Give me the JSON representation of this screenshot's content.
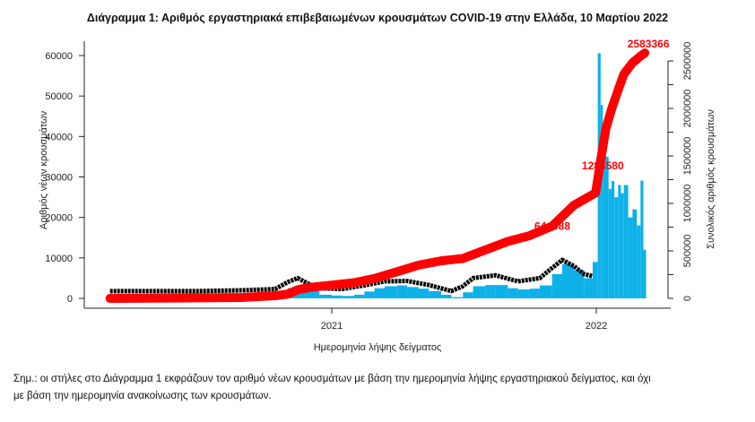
{
  "chart_data": {
    "type": "bar",
    "title": "Διάγραμμα 1: Αριθμός εργαστηριακά επιβεβαιωμένων κρουσμάτων COVID-19 στην Ελλάδα, 10 Μαρτίου 2022",
    "xlabel": "Ημερομηνία λήψης δείγματος",
    "ylabel": "Αριθμός νέων κρουσμάτων",
    "ylabel_right": "Συνολικός αριθμός κρουσμάτων",
    "ylim": [
      0,
      60000
    ],
    "ylim_right": [
      0,
      2600000
    ],
    "yticks": [
      "0",
      "10000",
      "20000",
      "30000",
      "40000",
      "50000",
      "60000"
    ],
    "yticks_right": [
      "0",
      "500000",
      "1000000",
      "1500000",
      "2000000",
      "2500000"
    ],
    "xticks": [
      "2021",
      "2022"
    ],
    "grid": false,
    "colors": {
      "bars": "#0db1e8",
      "line": "#000000",
      "cumulative": "#ff0000"
    },
    "bars": {
      "dates": [
        "2020-03-01",
        "2020-04-01",
        "2020-05-01",
        "2020-06-01",
        "2020-07-01",
        "2020-08-01",
        "2020-09-01",
        "2020-10-01",
        "2020-10-15",
        "2020-11-01",
        "2020-11-15",
        "2020-12-01",
        "2020-12-15",
        "2021-01-01",
        "2021-01-15",
        "2021-02-01",
        "2021-02-15",
        "2021-03-01",
        "2021-03-15",
        "2021-04-01",
        "2021-04-15",
        "2021-05-01",
        "2021-05-15",
        "2021-06-01",
        "2021-06-15",
        "2021-07-01",
        "2021-07-15",
        "2021-08-01",
        "2021-08-15",
        "2021-09-01",
        "2021-09-15",
        "2021-10-01",
        "2021-10-15",
        "2021-11-01",
        "2021-11-15",
        "2021-12-01",
        "2021-12-15",
        "2021-12-27",
        "2022-01-03",
        "2022-01-07",
        "2022-01-10",
        "2022-01-14",
        "2022-01-18",
        "2022-01-22",
        "2022-01-26",
        "2022-01-31",
        "2022-02-04",
        "2022-02-08",
        "2022-02-14",
        "2022-02-20",
        "2022-02-26",
        "2022-03-03",
        "2022-03-07"
      ],
      "values": [
        30,
        80,
        20,
        20,
        30,
        200,
        300,
        400,
        900,
        2500,
        3200,
        1800,
        900,
        700,
        600,
        900,
        1700,
        2500,
        3000,
        3200,
        2800,
        2400,
        1800,
        900,
        300,
        1500,
        3000,
        3300,
        3300,
        2500,
        2200,
        2400,
        3200,
        6000,
        8500,
        7000,
        5000,
        9000,
        60578,
        47800,
        42000,
        35000,
        27000,
        29000,
        25000,
        28000,
        26000,
        28000,
        20000,
        22000,
        18000,
        29095,
        12000
      ]
    },
    "line": {
      "dates": [
        "2020-03-01",
        "2020-05-01",
        "2020-07-01",
        "2020-09-01",
        "2020-10-15",
        "2020-11-01",
        "2020-11-15",
        "2020-12-01",
        "2020-12-15",
        "2021-01-15",
        "2021-02-15",
        "2021-03-15",
        "2021-04-15",
        "2021-05-15",
        "2021-06-15",
        "2021-07-01",
        "2021-07-15",
        "2021-08-15",
        "2021-09-15",
        "2021-10-15",
        "2021-11-01",
        "2021-11-15",
        "2021-12-01",
        "2021-12-15",
        "2021-12-27"
      ],
      "values": [
        1800,
        1800,
        1800,
        2000,
        2300,
        4000,
        5000,
        3500,
        2500,
        2300,
        3200,
        4200,
        4300,
        3300,
        1800,
        3000,
        5000,
        5700,
        4200,
        5000,
        7500,
        9500,
        8000,
        6000,
        5500
      ]
    },
    "cumulative": {
      "dates": [
        "2020-03-01",
        "2020-06-01",
        "2020-09-01",
        "2020-10-15",
        "2020-11-01",
        "2020-11-15",
        "2020-12-01",
        "2021-01-01",
        "2021-02-01",
        "2021-03-01",
        "2021-04-01",
        "2021-05-01",
        "2021-06-01",
        "2021-07-01",
        "2021-08-01",
        "2021-09-01",
        "2021-10-01",
        "2021-11-01",
        "2021-12-01",
        "2021-12-31",
        "2022-01-07",
        "2022-01-14",
        "2022-01-22",
        "2022-01-31",
        "2022-02-08",
        "2022-02-20",
        "2022-03-03",
        "2022-03-09"
      ],
      "values": [
        0,
        3200,
        10000,
        28000,
        45000,
        90000,
        115000,
        140000,
        165000,
        210000,
        280000,
        350000,
        395000,
        420000,
        510000,
        600000,
        660000,
        760000,
        980000,
        1110000,
        1450000,
        1780000,
        1990000,
        2190000,
        2360000,
        2480000,
        2550000,
        2583366
      ]
    },
    "annotations": [
      {
        "date": "2021-10-20",
        "value": 644988,
        "label": "644988"
      },
      {
        "date": "2022-01-10",
        "value": 1284580,
        "label": "1284580"
      },
      {
        "date": "2022-03-09",
        "value": 2583366,
        "label": "2583366"
      }
    ]
  },
  "note": {
    "line1": "Σημ.: οι στήλες στο Διάγραμμα 1 εκφράζουν τον αριθμό νέων κρουσμάτων με βάση την ημερομηνία λήψης εργαστηριακού δείγματος, και όχι",
    "line2": "με βάση την ημερομηνία ανακοίνωσης των κρουσμάτων."
  }
}
